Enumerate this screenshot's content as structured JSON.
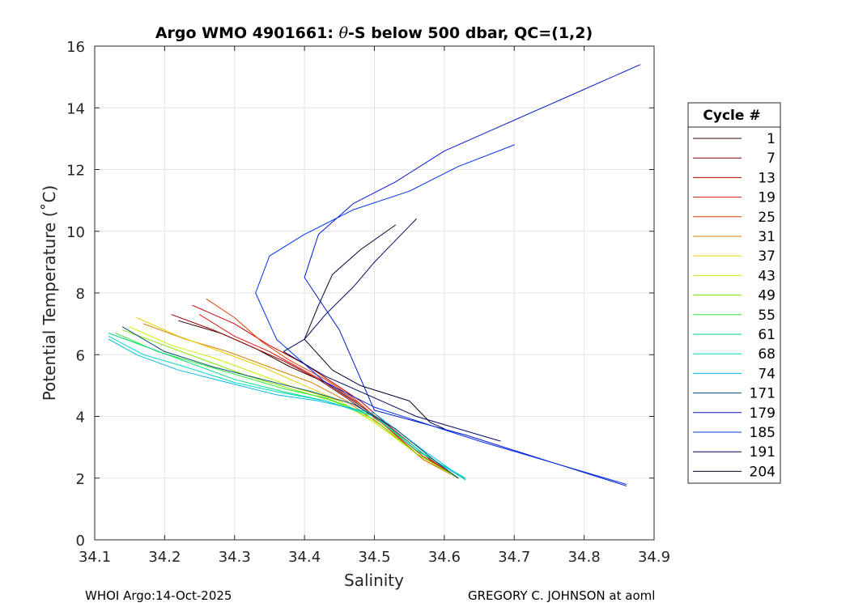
{
  "chart_data": {
    "type": "line",
    "title_parts": [
      "Argo WMO 4901661: ",
      "θ",
      "-S below 500 dbar,  QC=(1,2)"
    ],
    "xlabel": "Salinity",
    "ylabel": "Potential Temperature (˚C)",
    "xlim": [
      34.1,
      34.9
    ],
    "ylim": [
      0,
      16
    ],
    "xticks": [
      34.1,
      34.2,
      34.3,
      34.4,
      34.5,
      34.6,
      34.7,
      34.8,
      34.9
    ],
    "xtick_labels": [
      "34.1",
      "34.2",
      "34.3",
      "34.4",
      "34.5",
      "34.6",
      "34.7",
      "34.8",
      "34.9"
    ],
    "yticks": [
      0,
      2,
      4,
      6,
      8,
      10,
      12,
      14,
      16
    ],
    "ytick_labels": [
      "0",
      "2",
      "4",
      "6",
      "8",
      "10",
      "12",
      "14",
      "16"
    ],
    "grid": true,
    "legend": {
      "title": "Cycle #",
      "placement": "outside-right",
      "entries": [
        {
          "name": "1",
          "color": "#3a0000"
        },
        {
          "name": "7",
          "color": "#8b0000"
        },
        {
          "name": "13",
          "color": "#c80000"
        },
        {
          "name": "19",
          "color": "#e01010"
        },
        {
          "name": "25",
          "color": "#e04000"
        },
        {
          "name": "31",
          "color": "#d88000"
        },
        {
          "name": "37",
          "color": "#e8d000"
        },
        {
          "name": "43",
          "color": "#ccee00"
        },
        {
          "name": "49",
          "color": "#80e800"
        },
        {
          "name": "55",
          "color": "#30e830"
        },
        {
          "name": "61",
          "color": "#00d880"
        },
        {
          "name": "68",
          "color": "#00d8c8"
        },
        {
          "name": "74",
          "color": "#00b8e8"
        },
        {
          "name": "171",
          "color": "#004e78"
        },
        {
          "name": "179",
          "color": "#0018c8"
        },
        {
          "name": "185",
          "color": "#0030f0"
        },
        {
          "name": "191",
          "color": "#000a60"
        },
        {
          "name": "204",
          "color": "#000030"
        }
      ]
    },
    "series": [
      {
        "name": "1",
        "color": "#3a0000",
        "s": [
          34.22,
          34.28,
          34.33,
          34.38,
          34.43,
          34.47,
          34.52,
          34.58,
          34.62
        ],
        "t": [
          7.1,
          6.7,
          6.2,
          5.6,
          5.1,
          4.5,
          3.7,
          2.6,
          2.0
        ]
      },
      {
        "name": "7",
        "color": "#8b0000",
        "s": [
          34.21,
          34.27,
          34.32,
          34.37,
          34.42,
          34.46,
          34.51,
          34.57,
          34.62
        ],
        "t": [
          7.3,
          6.8,
          6.3,
          5.8,
          5.2,
          4.6,
          3.8,
          2.7,
          2.0
        ]
      },
      {
        "name": "13",
        "color": "#c80000",
        "s": [
          34.24,
          34.3,
          34.35,
          34.4,
          34.44,
          34.48,
          34.52,
          34.58,
          34.62
        ],
        "t": [
          7.6,
          7.0,
          6.3,
          5.7,
          5.1,
          4.5,
          3.7,
          2.6,
          2.0
        ]
      },
      {
        "name": "19",
        "color": "#e01010",
        "s": [
          34.25,
          34.3,
          34.35,
          34.39,
          34.44,
          34.48,
          34.52,
          34.57,
          34.62
        ],
        "t": [
          7.3,
          6.6,
          6.1,
          5.6,
          5.0,
          4.4,
          3.6,
          2.6,
          2.0
        ]
      },
      {
        "name": "25",
        "color": "#e04000",
        "s": [
          34.26,
          34.3,
          34.34,
          34.38,
          34.43,
          34.47,
          34.51,
          34.57,
          34.62
        ],
        "t": [
          7.8,
          7.2,
          6.4,
          5.8,
          5.2,
          4.6,
          3.8,
          2.7,
          2.0
        ]
      },
      {
        "name": "31",
        "color": "#d88000",
        "s": [
          34.17,
          34.23,
          34.29,
          34.35,
          34.41,
          34.46,
          34.51,
          34.57,
          34.62
        ],
        "t": [
          7.0,
          6.5,
          6.1,
          5.6,
          5.1,
          4.5,
          3.7,
          2.6,
          2.0
        ]
      },
      {
        "name": "37",
        "color": "#e8d000",
        "s": [
          34.16,
          34.22,
          34.28,
          34.34,
          34.4,
          34.45,
          34.5,
          34.56,
          34.62
        ],
        "t": [
          7.2,
          6.6,
          6.1,
          5.6,
          5.0,
          4.5,
          3.8,
          2.8,
          2.0
        ]
      },
      {
        "name": "43",
        "color": "#ccee00",
        "s": [
          34.15,
          34.21,
          34.27,
          34.33,
          34.39,
          34.45,
          34.5,
          34.56,
          34.62
        ],
        "t": [
          6.9,
          6.3,
          5.9,
          5.4,
          4.9,
          4.5,
          3.8,
          2.8,
          2.0
        ]
      },
      {
        "name": "49",
        "color": "#80e800",
        "s": [
          34.14,
          34.2,
          34.26,
          34.32,
          34.38,
          34.44,
          34.5,
          34.56,
          34.62
        ],
        "t": [
          6.8,
          6.3,
          5.8,
          5.3,
          4.9,
          4.5,
          3.9,
          2.8,
          2.0
        ]
      },
      {
        "name": "55",
        "color": "#30e830",
        "s": [
          34.13,
          34.19,
          34.25,
          34.31,
          34.37,
          34.43,
          34.5,
          34.56,
          34.63
        ],
        "t": [
          6.7,
          6.1,
          5.7,
          5.3,
          4.9,
          4.6,
          4.0,
          2.9,
          2.0
        ]
      },
      {
        "name": "61",
        "color": "#00d880",
        "s": [
          34.12,
          34.18,
          34.24,
          34.3,
          34.37,
          34.43,
          34.5,
          34.56,
          34.63
        ],
        "t": [
          6.7,
          6.2,
          5.7,
          5.2,
          4.8,
          4.5,
          4.0,
          2.9,
          2.0
        ]
      },
      {
        "name": "68",
        "color": "#00d8c8",
        "s": [
          34.12,
          34.17,
          34.23,
          34.3,
          34.36,
          34.43,
          34.5,
          34.57,
          34.63
        ],
        "t": [
          6.6,
          6.0,
          5.6,
          5.1,
          4.8,
          4.5,
          4.0,
          2.8,
          1.95
        ]
      },
      {
        "name": "74",
        "color": "#00b8e8",
        "s": [
          34.12,
          34.16,
          34.22,
          34.29,
          34.36,
          34.42,
          34.5,
          34.57,
          34.63
        ],
        "t": [
          6.5,
          6.0,
          5.5,
          5.1,
          4.7,
          4.5,
          4.1,
          2.9,
          1.95
        ]
      },
      {
        "name": "171",
        "color": "#004e78",
        "s": [
          34.14,
          34.2,
          34.27,
          34.34,
          34.41,
          34.47,
          34.53,
          34.59,
          34.62
        ],
        "t": [
          6.9,
          6.1,
          5.6,
          5.2,
          4.8,
          4.4,
          3.6,
          2.5,
          2.0
        ]
      },
      {
        "name": "179",
        "color": "#0018c8",
        "s": [
          34.88,
          34.78,
          34.68,
          34.6,
          34.53,
          34.47,
          34.42,
          34.4,
          34.45,
          34.5,
          34.63,
          34.86
        ],
        "t": [
          15.4,
          14.4,
          13.4,
          12.6,
          11.6,
          10.9,
          9.9,
          8.5,
          6.8,
          4.2,
          3.4,
          1.75
        ]
      },
      {
        "name": "185",
        "color": "#0030f0",
        "s": [
          34.7,
          34.62,
          34.55,
          34.47,
          34.4,
          34.35,
          34.33,
          34.36,
          34.43,
          34.5,
          34.65,
          34.86
        ],
        "t": [
          12.8,
          12.1,
          11.3,
          10.7,
          9.9,
          9.2,
          8.0,
          6.5,
          5.1,
          4.3,
          3.2,
          1.8
        ]
      },
      {
        "name": "191",
        "color": "#000a60",
        "s": [
          34.56,
          34.53,
          34.5,
          34.47,
          34.43,
          34.4,
          34.37,
          34.43,
          34.5,
          34.56,
          34.68
        ],
        "t": [
          10.4,
          9.7,
          9.0,
          8.2,
          7.3,
          6.5,
          6.1,
          5.3,
          4.6,
          4.0,
          3.2
        ]
      },
      {
        "name": "204",
        "color": "#000030",
        "s": [
          34.53,
          34.48,
          34.44,
          34.42,
          34.4,
          34.44,
          34.48,
          34.55,
          34.58,
          34.6
        ],
        "t": [
          10.2,
          9.4,
          8.6,
          7.6,
          6.5,
          5.5,
          5.0,
          4.5,
          3.8,
          3.6
        ]
      }
    ]
  },
  "footer": {
    "left": "WHOI Argo:14-Oct-2025",
    "right": "GREGORY C. JOHNSON at aoml"
  }
}
